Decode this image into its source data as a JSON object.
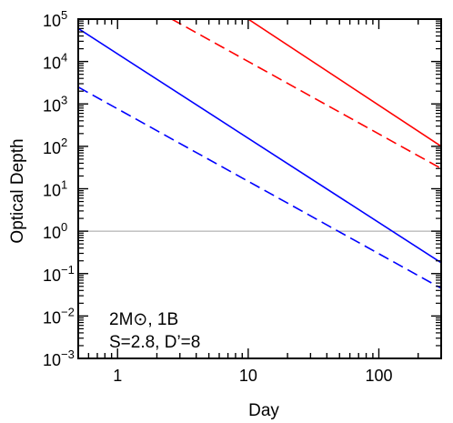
{
  "chart_data": {
    "type": "line",
    "xlabel": "Day",
    "ylabel": "Optical Depth",
    "x_scale": "log",
    "y_scale": "log",
    "xlim": [
      0.5,
      300
    ],
    "ylim": [
      0.001,
      100000
    ],
    "x_ticks": [
      {
        "value": 1,
        "label": "1"
      },
      {
        "value": 10,
        "label": "10"
      },
      {
        "value": 100,
        "label": "100"
      }
    ],
    "y_ticks": [
      {
        "value": 0.001,
        "base": "10",
        "exp": "−3"
      },
      {
        "value": 0.01,
        "base": "10",
        "exp": "−2"
      },
      {
        "value": 0.1,
        "base": "10",
        "exp": "−1"
      },
      {
        "value": 1,
        "base": "10",
        "exp": "0"
      },
      {
        "value": 10,
        "base": "10",
        "exp": "1"
      },
      {
        "value": 100,
        "base": "10",
        "exp": "2"
      },
      {
        "value": 1000,
        "base": "10",
        "exp": "3"
      },
      {
        "value": 10000,
        "base": "10",
        "exp": "4"
      },
      {
        "value": 100000,
        "base": "10",
        "exp": "5"
      }
    ],
    "reference_line": {
      "y": 1,
      "color": "#a0a0a0"
    },
    "annotation": {
      "line1": "2M⊙, 1B",
      "line2": "S=2.8, D’=8"
    },
    "series": [
      {
        "color": "#ff0000",
        "dash": "solid",
        "points": [
          [
            10,
            100000
          ],
          [
            300,
            100
          ]
        ]
      },
      {
        "color": "#ff0000",
        "dash": "dashed",
        "points": [
          [
            2.6,
            100000
          ],
          [
            300,
            30
          ]
        ]
      },
      {
        "color": "#0000ff",
        "dash": "solid",
        "points": [
          [
            0.5,
            60000
          ],
          [
            300,
            0.18
          ]
        ]
      },
      {
        "color": "#0000ff",
        "dash": "dashed",
        "points": [
          [
            0.5,
            2500
          ],
          [
            300,
            0.045
          ]
        ]
      }
    ],
    "grid": false
  }
}
